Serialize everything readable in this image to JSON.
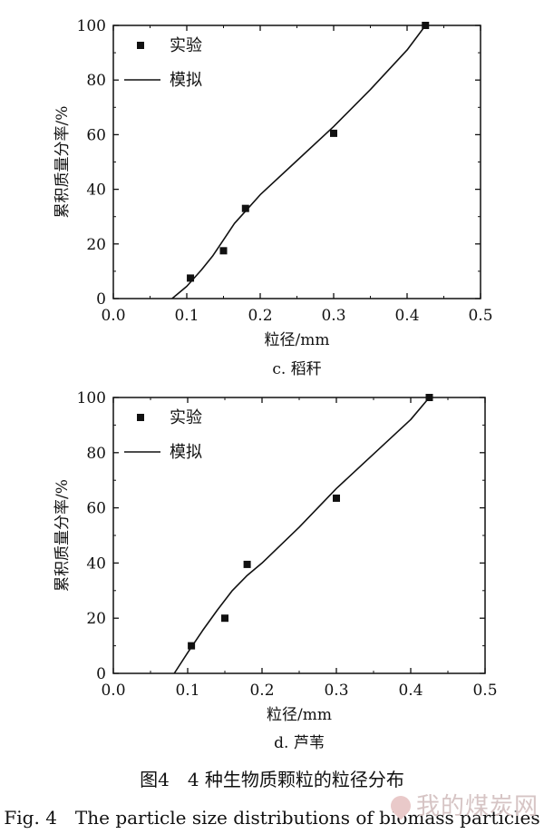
{
  "chart_data": [
    {
      "type": "scatter",
      "subtitle": "c. 稻秆",
      "xlabel": "粒径/mm",
      "ylabel": "累积质量分率/%",
      "xlim": [
        0.0,
        0.5
      ],
      "ylim": [
        0,
        100
      ],
      "xticks": [
        "0.0",
        "0.1",
        "0.2",
        "0.3",
        "0.4",
        "0.5"
      ],
      "yticks": [
        "0",
        "20",
        "40",
        "60",
        "80",
        "100"
      ],
      "legend": {
        "placement": "top-left",
        "entries": [
          "实验",
          "模拟"
        ]
      },
      "series": [
        {
          "name": "实验",
          "kind": "scatter",
          "x": [
            0.105,
            0.15,
            0.18,
            0.3,
            0.425
          ],
          "y": [
            7.5,
            17.5,
            33,
            60.5,
            100
          ]
        },
        {
          "name": "模拟",
          "kind": "line",
          "x": [
            0.08,
            0.1,
            0.12,
            0.135,
            0.15,
            0.165,
            0.18,
            0.2,
            0.25,
            0.3,
            0.35,
            0.4,
            0.425
          ],
          "y": [
            0,
            4.5,
            10.5,
            15.5,
            21.5,
            27.5,
            32,
            38,
            50.5,
            63,
            76.5,
            91,
            100
          ]
        }
      ]
    },
    {
      "type": "scatter",
      "subtitle": "d. 芦苇",
      "xlabel": "粒径/mm",
      "ylabel": "累积质量分率/%",
      "xlim": [
        0.0,
        0.5
      ],
      "ylim": [
        0,
        100
      ],
      "xticks": [
        "0.0",
        "0.1",
        "0.2",
        "0.3",
        "0.4",
        "0.5"
      ],
      "yticks": [
        "0",
        "20",
        "40",
        "60",
        "80",
        "100"
      ],
      "legend": {
        "placement": "top-left",
        "entries": [
          "实验",
          "模拟"
        ]
      },
      "series": [
        {
          "name": "实验",
          "kind": "scatter",
          "x": [
            0.105,
            0.15,
            0.18,
            0.3,
            0.425
          ],
          "y": [
            10,
            20,
            39.5,
            63.5,
            100
          ]
        },
        {
          "name": "模拟",
          "kind": "line",
          "x": [
            0.082,
            0.1,
            0.12,
            0.14,
            0.16,
            0.18,
            0.2,
            0.25,
            0.3,
            0.35,
            0.4,
            0.425
          ],
          "y": [
            0,
            7.5,
            15.5,
            23,
            30,
            35.5,
            40,
            53,
            67,
            79.5,
            92,
            100
          ]
        }
      ]
    }
  ],
  "caption": {
    "cn": "图4　4 种生物质颗粒的粒径分布",
    "en": "Fig. 4　The particle size distributions of biomass particles"
  },
  "watermark": "我的煤炭网"
}
